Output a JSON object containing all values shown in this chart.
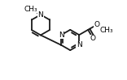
{
  "bg_color": "#ffffff",
  "line_color": "#1a1a1a",
  "line_width": 1.3,
  "font_size": 6.5,
  "atom_bg": "#ffffff",
  "xlim": [
    -0.05,
    1.1
  ],
  "ylim": [
    0.05,
    0.95
  ]
}
